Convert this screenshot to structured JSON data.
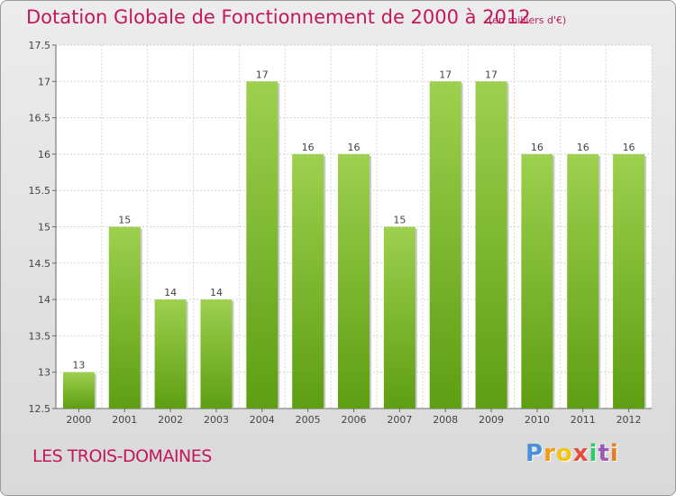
{
  "header": {
    "title": "Dotation Globale de Fonctionnement de 2000 à 2012",
    "subtitle": "(en milliers d'€)"
  },
  "footer": {
    "place": "LES TROIS-DOMAINES",
    "brand": "Proxiti",
    "brand_letters": [
      "P",
      "r",
      "o",
      "x",
      "i",
      "t",
      "i"
    ]
  },
  "colors": {
    "title": "#c2185b",
    "bar_light": "#9dd04e",
    "bar_dark": "#5e9e12"
  },
  "chart_data": {
    "type": "bar",
    "categories": [
      "2000",
      "2001",
      "2002",
      "2003",
      "2004",
      "2005",
      "2006",
      "2007",
      "2008",
      "2009",
      "2010",
      "2011",
      "2012"
    ],
    "values": [
      13,
      15,
      14,
      14,
      17,
      16,
      16,
      15,
      17,
      17,
      16,
      16,
      16
    ],
    "value_labels": [
      "13",
      "15",
      "14",
      "14",
      "17",
      "16",
      "16",
      "15",
      "17",
      "17",
      "16",
      "16",
      "16"
    ],
    "ylim": [
      12.5,
      17.5
    ],
    "yticks": [
      12.5,
      13,
      13.5,
      14,
      14.5,
      15,
      15.5,
      16,
      16.5,
      17,
      17.5
    ],
    "ytick_labels": [
      "12.5",
      "13",
      "13.5",
      "14",
      "14.5",
      "15",
      "15.5",
      "16",
      "16.5",
      "17",
      "17.5"
    ],
    "grid": true,
    "title": "Dotation Globale de Fonctionnement de 2000 à 2012",
    "xlabel": "",
    "ylabel": ""
  }
}
